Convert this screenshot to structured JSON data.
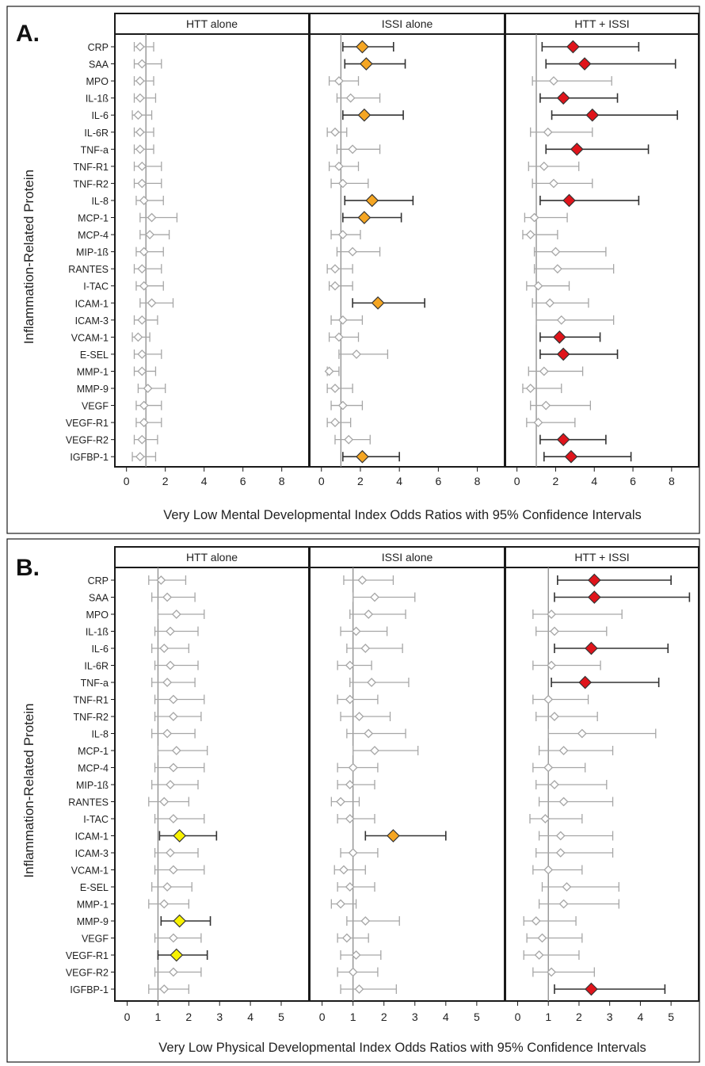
{
  "x_axis_labels": [
    "Very Low Mental Developmental Index Odds Ratios with 95% Confidence Intervals",
    "Very Low Physical Developmental Index Odds Ratios with 95% Confidence Intervals"
  ],
  "colors": {
    "frame": "#1a1a1a",
    "nonsignificant": "#a6a6a6",
    "ci_significant": "#333333",
    "orange": "#f5a623",
    "red": "#e0141b",
    "yellow": "#f8f200",
    "reference_line": "#8c8c8c"
  },
  "chart_data": [
    {
      "type": "forest",
      "panel_label": "A.",
      "ylabel": "Inflammation-Related Protein",
      "xlabel": "Very Low Mental Developmental Index Odds Ratios with 95% Confidence Intervals",
      "xlim": [
        -0.6,
        9.4
      ],
      "xticks": [
        0,
        2,
        4,
        6,
        8
      ],
      "reference_line": 1,
      "facets": [
        "HTT alone",
        "ISSI alone",
        "HTT + ISSI"
      ],
      "proteins": [
        "CRP",
        "SAA",
        "MPO",
        "IL-1ß",
        "IL-6",
        "IL-6R",
        "TNF-a",
        "TNF-R1",
        "TNF-R2",
        "IL-8",
        "MCP-1",
        "MCP-4",
        "MIP-1ß",
        "RANTES",
        "I-TAC",
        "ICAM-1",
        "ICAM-3",
        "VCAM-1",
        "E-SEL",
        "MMP-1",
        "MMP-9",
        "VEGF",
        "VEGF-R1",
        "VEGF-R2",
        "IGFBP-1"
      ],
      "series": [
        {
          "name": "HTT alone",
          "or": [
            0.7,
            0.8,
            0.7,
            0.7,
            0.6,
            0.7,
            0.7,
            0.8,
            0.8,
            0.9,
            1.3,
            1.2,
            0.9,
            0.8,
            0.9,
            1.3,
            0.8,
            0.6,
            0.8,
            0.8,
            1.1,
            0.9,
            0.9,
            0.8,
            0.7
          ],
          "lower": [
            0.4,
            0.4,
            0.4,
            0.4,
            0.3,
            0.4,
            0.4,
            0.4,
            0.4,
            0.5,
            0.7,
            0.7,
            0.5,
            0.4,
            0.5,
            0.7,
            0.4,
            0.3,
            0.4,
            0.4,
            0.6,
            0.5,
            0.5,
            0.4,
            0.3
          ],
          "upper": [
            1.4,
            1.8,
            1.4,
            1.5,
            1.3,
            1.4,
            1.4,
            1.8,
            1.8,
            1.9,
            2.6,
            2.2,
            1.9,
            1.8,
            1.9,
            2.4,
            1.6,
            1.2,
            1.8,
            1.5,
            2.0,
            1.8,
            1.8,
            1.6,
            1.5
          ],
          "category": [
            "n",
            "n",
            "n",
            "n",
            "n",
            "n",
            "n",
            "n",
            "n",
            "n",
            "n",
            "n",
            "n",
            "n",
            "n",
            "n",
            "n",
            "n",
            "n",
            "n",
            "n",
            "n",
            "n",
            "n",
            "n"
          ]
        },
        {
          "name": "ISSI alone",
          "or": [
            2.1,
            2.3,
            0.9,
            1.5,
            2.2,
            0.7,
            1.6,
            0.9,
            1.1,
            2.6,
            2.2,
            1.1,
            1.6,
            0.7,
            0.7,
            2.9,
            1.1,
            0.9,
            1.8,
            0.4,
            0.7,
            1.1,
            0.7,
            1.4,
            2.1
          ],
          "lower": [
            1.1,
            1.2,
            0.4,
            0.8,
            1.1,
            0.3,
            0.8,
            0.4,
            0.5,
            1.2,
            1.1,
            0.5,
            0.8,
            0.3,
            0.4,
            1.6,
            0.5,
            0.4,
            0.9,
            0.3,
            0.3,
            0.5,
            0.3,
            0.7,
            1.1
          ],
          "upper": [
            3.7,
            4.3,
            1.9,
            3.0,
            4.2,
            1.3,
            3.0,
            1.9,
            2.4,
            4.7,
            4.1,
            2.0,
            3.0,
            1.6,
            1.6,
            5.3,
            2.1,
            1.9,
            3.4,
            0.9,
            1.6,
            2.1,
            1.5,
            2.5,
            4.0
          ],
          "category": [
            "o",
            "o",
            "n",
            "n",
            "o",
            "n",
            "n",
            "n",
            "n",
            "o",
            "o",
            "n",
            "n",
            "n",
            "n",
            "o",
            "n",
            "n",
            "n",
            "n",
            "n",
            "n",
            "n",
            "n",
            "o"
          ]
        },
        {
          "name": "HTT + ISSI",
          "or": [
            2.9,
            3.5,
            1.9,
            2.4,
            3.9,
            1.6,
            3.1,
            1.4,
            1.9,
            2.7,
            0.9,
            0.7,
            2.0,
            2.1,
            1.1,
            1.7,
            2.3,
            2.2,
            2.4,
            1.4,
            0.7,
            1.5,
            1.1,
            2.4,
            2.8
          ],
          "lower": [
            1.3,
            1.5,
            0.8,
            1.2,
            1.8,
            0.7,
            1.5,
            0.6,
            0.8,
            1.2,
            0.4,
            0.3,
            0.9,
            0.9,
            0.5,
            0.8,
            1.0,
            1.2,
            1.2,
            0.6,
            0.3,
            0.7,
            0.5,
            1.2,
            1.4
          ],
          "upper": [
            6.3,
            8.2,
            4.9,
            5.2,
            8.3,
            3.9,
            6.8,
            3.2,
            3.9,
            6.3,
            2.6,
            2.1,
            4.6,
            5.0,
            2.7,
            3.7,
            5.0,
            4.3,
            5.2,
            3.4,
            2.3,
            3.8,
            3.0,
            4.6,
            5.9
          ],
          "category": [
            "r",
            "r",
            "n",
            "r",
            "r",
            "n",
            "r",
            "n",
            "n",
            "r",
            "n",
            "n",
            "n",
            "n",
            "n",
            "n",
            "n",
            "r",
            "r",
            "n",
            "n",
            "n",
            "n",
            "r",
            "r"
          ]
        }
      ]
    },
    {
      "type": "forest",
      "panel_label": "B.",
      "ylabel": "Inflammation-Related Protein",
      "xlabel": "Very Low Physical Developmental Index Odds Ratios with 95% Confidence Intervals",
      "xlim": [
        -0.4,
        5.9
      ],
      "xticks": [
        0,
        1,
        2,
        3,
        4,
        5
      ],
      "reference_line": 1,
      "facets": [
        "HTT alone",
        "ISSI alone",
        "HTT + ISSI"
      ],
      "proteins": [
        "CRP",
        "SAA",
        "MPO",
        "IL-1ß",
        "IL-6",
        "IL-6R",
        "TNF-a",
        "TNF-R1",
        "TNF-R2",
        "IL-8",
        "MCP-1",
        "MCP-4",
        "MIP-1ß",
        "RANTES",
        "I-TAC",
        "ICAM-1",
        "ICAM-3",
        "VCAM-1",
        "E-SEL",
        "MMP-1",
        "MMP-9",
        "VEGF",
        "VEGF-R1",
        "VEGF-R2",
        "IGFBP-1"
      ],
      "series": [
        {
          "name": "HTT alone",
          "or": [
            1.1,
            1.3,
            1.6,
            1.4,
            1.2,
            1.4,
            1.3,
            1.5,
            1.5,
            1.3,
            1.6,
            1.5,
            1.4,
            1.2,
            1.5,
            1.7,
            1.4,
            1.5,
            1.3,
            1.2,
            1.7,
            1.5,
            1.6,
            1.5,
            1.2
          ],
          "lower": [
            0.7,
            0.8,
            1.0,
            0.9,
            0.8,
            0.9,
            0.8,
            0.9,
            0.9,
            0.8,
            1.0,
            0.9,
            0.8,
            0.7,
            0.9,
            1.05,
            0.9,
            0.9,
            0.8,
            0.7,
            1.1,
            0.9,
            1.0,
            0.9,
            0.7
          ],
          "upper": [
            1.9,
            2.2,
            2.5,
            2.3,
            2.0,
            2.3,
            2.2,
            2.5,
            2.4,
            2.2,
            2.6,
            2.5,
            2.3,
            2.0,
            2.5,
            2.9,
            2.3,
            2.5,
            2.1,
            2.0,
            2.7,
            2.4,
            2.6,
            2.4,
            2.0
          ],
          "category": [
            "n",
            "n",
            "n",
            "n",
            "n",
            "n",
            "n",
            "n",
            "n",
            "n",
            "n",
            "n",
            "n",
            "n",
            "n",
            "y",
            "n",
            "n",
            "n",
            "n",
            "y",
            "n",
            "y",
            "n",
            "n"
          ]
        },
        {
          "name": "ISSI alone",
          "or": [
            1.3,
            1.7,
            1.5,
            1.1,
            1.4,
            0.9,
            1.6,
            0.9,
            1.2,
            1.5,
            1.7,
            1.0,
            0.9,
            0.6,
            0.9,
            2.3,
            1.0,
            0.7,
            0.9,
            0.6,
            1.4,
            0.8,
            1.1,
            1.0,
            1.2
          ],
          "lower": [
            0.7,
            1.0,
            0.9,
            0.6,
            0.8,
            0.5,
            0.9,
            0.5,
            0.6,
            0.8,
            1.0,
            0.5,
            0.5,
            0.3,
            0.5,
            1.4,
            0.6,
            0.4,
            0.5,
            0.3,
            0.8,
            0.5,
            0.6,
            0.5,
            0.6
          ],
          "upper": [
            2.3,
            3.0,
            2.7,
            2.1,
            2.6,
            1.6,
            2.8,
            1.8,
            2.2,
            2.7,
            3.1,
            1.8,
            1.7,
            1.2,
            1.7,
            4.0,
            1.8,
            1.4,
            1.7,
            1.1,
            2.5,
            1.5,
            1.9,
            1.8,
            2.4
          ],
          "category": [
            "n",
            "n",
            "n",
            "n",
            "n",
            "n",
            "n",
            "n",
            "n",
            "n",
            "n",
            "n",
            "n",
            "n",
            "n",
            "o",
            "n",
            "n",
            "n",
            "n",
            "n",
            "n",
            "n",
            "n",
            "n"
          ]
        },
        {
          "name": "HTT + ISSI",
          "or": [
            2.5,
            2.5,
            1.1,
            1.2,
            2.4,
            1.1,
            2.2,
            1.0,
            1.2,
            2.1,
            1.5,
            1.0,
            1.2,
            1.5,
            0.9,
            1.4,
            1.4,
            1.0,
            1.6,
            1.5,
            0.6,
            0.8,
            0.7,
            1.1,
            2.4
          ],
          "lower": [
            1.3,
            1.2,
            0.5,
            0.6,
            1.2,
            0.5,
            1.1,
            0.5,
            0.6,
            1.0,
            0.7,
            0.5,
            0.6,
            0.7,
            0.4,
            0.7,
            0.6,
            0.5,
            0.8,
            0.7,
            0.2,
            0.3,
            0.2,
            0.5,
            1.2
          ],
          "upper": [
            5.0,
            5.6,
            3.4,
            2.9,
            4.9,
            2.7,
            4.6,
            2.3,
            2.6,
            4.5,
            3.1,
            2.2,
            2.9,
            3.1,
            2.1,
            3.1,
            3.1,
            2.1,
            3.3,
            3.3,
            1.9,
            2.1,
            2.0,
            2.5,
            4.8
          ],
          "category": [
            "r",
            "r",
            "n",
            "n",
            "r",
            "n",
            "r",
            "n",
            "n",
            "n",
            "n",
            "n",
            "n",
            "n",
            "n",
            "n",
            "n",
            "n",
            "n",
            "n",
            "n",
            "n",
            "n",
            "n",
            "r"
          ]
        }
      ]
    }
  ]
}
